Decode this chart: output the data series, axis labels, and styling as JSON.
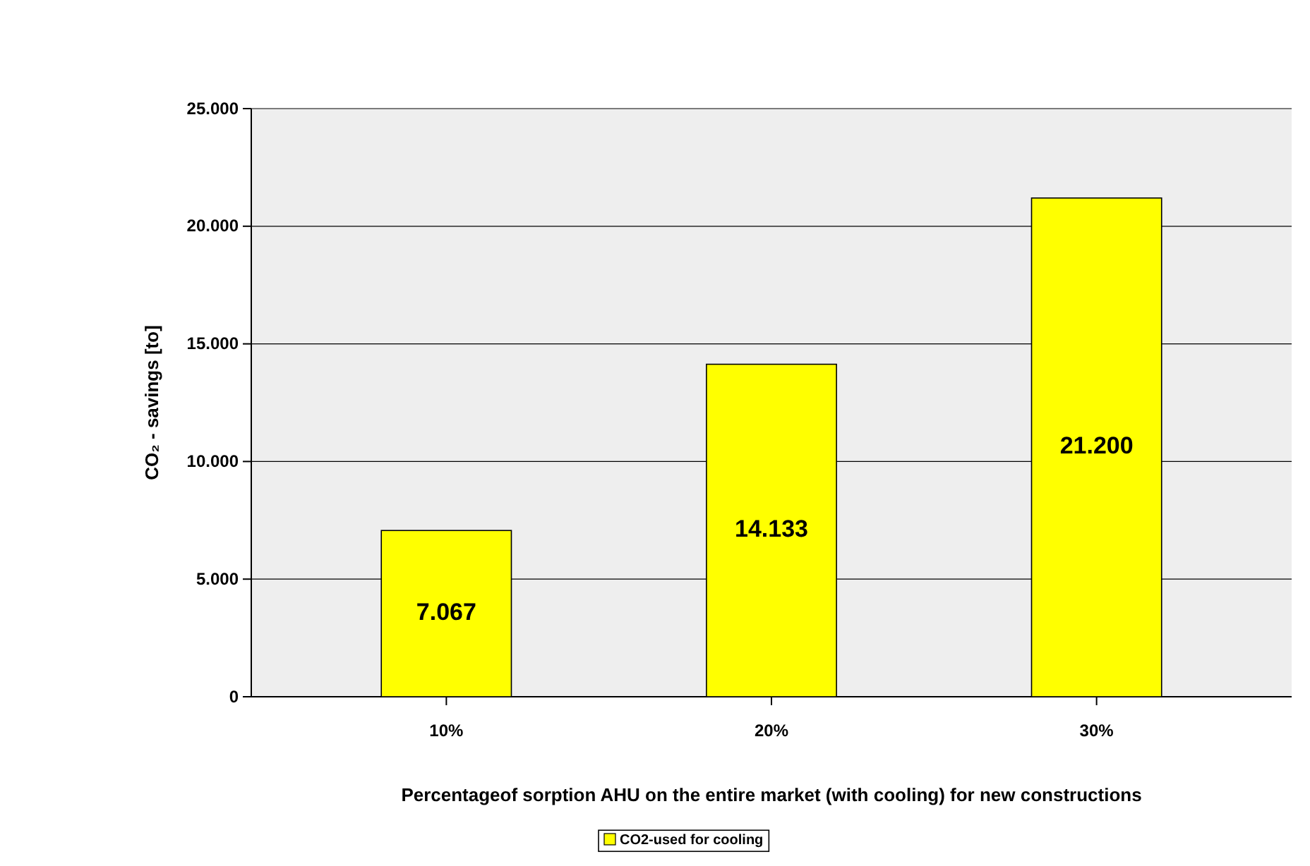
{
  "chart_data": {
    "type": "bar",
    "xlabel": "Percentageof sorption AHU on the entire market (with cooling) for new constructions",
    "ylabel": "CO₂ - savings [to]",
    "categories": [
      "10%",
      "20%",
      "30%"
    ],
    "series": [
      {
        "name": "CO2-used for cooling",
        "color": "#ffff00",
        "values": [
          7067,
          14133,
          21200
        ],
        "value_labels": [
          "7.067",
          "14.133",
          "21.200"
        ]
      }
    ],
    "ylim": [
      0,
      25000
    ],
    "yticks": [
      {
        "value": 0,
        "label": "0"
      },
      {
        "value": 5000,
        "label": "5.000"
      },
      {
        "value": 10000,
        "label": "10.000"
      },
      {
        "value": 15000,
        "label": "15.000"
      },
      {
        "value": 20000,
        "label": "20.000"
      },
      {
        "value": 25000,
        "label": "25.000"
      }
    ],
    "grid": "y",
    "legend": "bottom"
  }
}
